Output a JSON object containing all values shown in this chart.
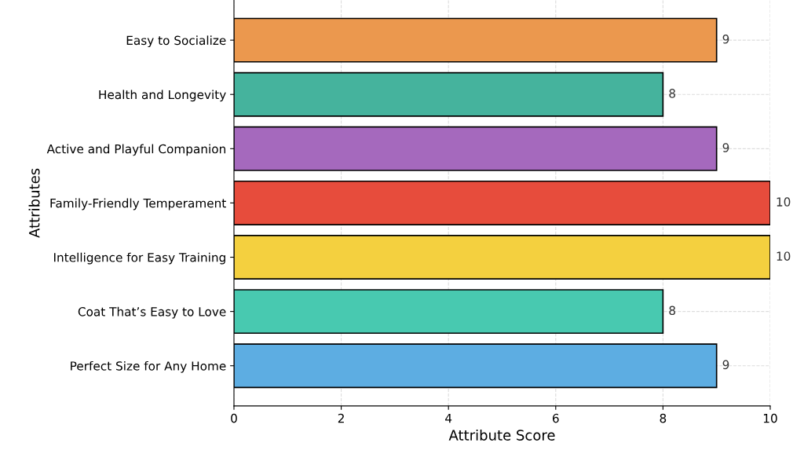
{
  "chart_data": {
    "type": "bar",
    "orientation": "horizontal",
    "xlabel": "Attribute Score",
    "ylabel": "Attributes",
    "categories": [
      "Easy to Socialize",
      "Health and Longevity",
      "Active and Playful Companion",
      "Family-Friendly Temperament",
      "Intelligence for Easy Training",
      "Coat That’s Easy to Love",
      "Perfect Size for Any Home"
    ],
    "values": [
      9,
      8,
      9,
      10,
      10,
      8,
      9
    ],
    "colors": [
      "#eb984e",
      "#45b39d",
      "#a569bd",
      "#e74c3c",
      "#f4d03f",
      "#48c9b0",
      "#5dade2"
    ],
    "xlim": [
      0,
      10
    ],
    "xticks": [
      0,
      2,
      4,
      6,
      8,
      10
    ],
    "grid": true,
    "data_labels": true
  }
}
